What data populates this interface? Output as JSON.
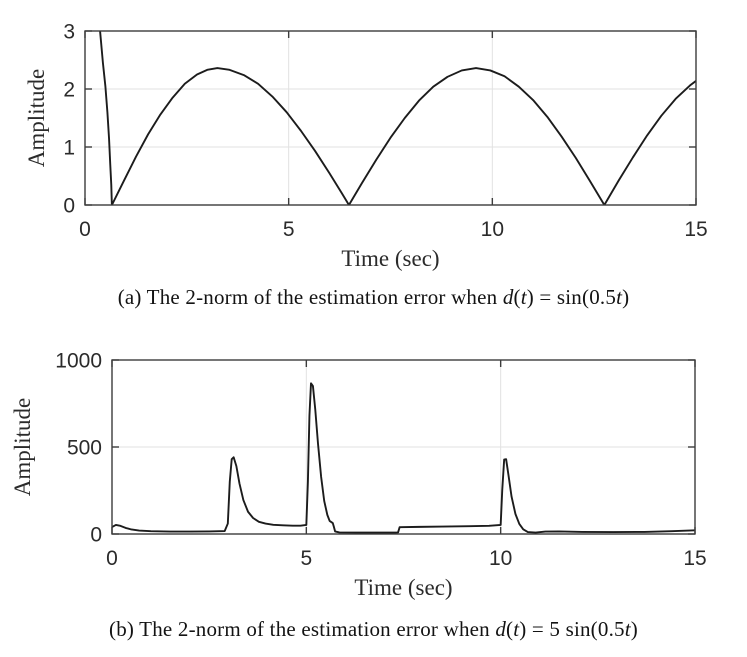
{
  "figure": {
    "background": "#ffffff",
    "curve_color": "#1c1c1c",
    "axis_color": "#3c3c3c",
    "grid_color": "#e2e2e2",
    "tick_label_color": "#2b2b2b",
    "label_color": "#2b2b2b"
  },
  "chart_data": [
    {
      "type": "line",
      "id": "a",
      "xlabel": "Time (sec)",
      "ylabel": "Amplitude",
      "xlim": [
        0,
        15
      ],
      "ylim": [
        0,
        3
      ],
      "x_ticks": [
        "0",
        "5",
        "10",
        "15"
      ],
      "x_tick_values": [
        0,
        5,
        10,
        15
      ],
      "y_ticks": [
        "0",
        "1",
        "2",
        "3"
      ],
      "y_tick_values": [
        0,
        1,
        2,
        3
      ],
      "grid": true,
      "legend": "none",
      "series": [
        {
          "name": "2-norm of estimation error, d(t)=sin(0.5t)",
          "points": [
            [
              0.33,
              3.45
            ],
            [
              0.37,
              3.0
            ],
            [
              0.44,
              2.45
            ],
            [
              0.5,
              2.05
            ],
            [
              0.55,
              1.6
            ],
            [
              0.59,
              1.15
            ],
            [
              0.62,
              0.7
            ],
            [
              0.645,
              0.35
            ],
            [
              0.66,
              0.0
            ],
            [
              0.95,
              0.41
            ],
            [
              1.25,
              0.83
            ],
            [
              1.55,
              1.22
            ],
            [
              1.85,
              1.56
            ],
            [
              2.15,
              1.85
            ],
            [
              2.45,
              2.09
            ],
            [
              2.75,
              2.25
            ],
            [
              3.0,
              2.33
            ],
            [
              3.25,
              2.36
            ],
            [
              3.55,
              2.33
            ],
            [
              3.9,
              2.24
            ],
            [
              4.25,
              2.09
            ],
            [
              4.6,
              1.87
            ],
            [
              4.95,
              1.6
            ],
            [
              5.3,
              1.28
            ],
            [
              5.65,
              0.93
            ],
            [
              6.0,
              0.55
            ],
            [
              6.3,
              0.21
            ],
            [
              6.48,
              0.0
            ],
            [
              6.8,
              0.38
            ],
            [
              7.15,
              0.78
            ],
            [
              7.5,
              1.16
            ],
            [
              7.85,
              1.5
            ],
            [
              8.2,
              1.8
            ],
            [
              8.55,
              2.04
            ],
            [
              8.9,
              2.21
            ],
            [
              9.25,
              2.32
            ],
            [
              9.6,
              2.36
            ],
            [
              9.95,
              2.32
            ],
            [
              10.3,
              2.22
            ],
            [
              10.65,
              2.04
            ],
            [
              11.0,
              1.81
            ],
            [
              11.35,
              1.52
            ],
            [
              11.7,
              1.18
            ],
            [
              12.05,
              0.81
            ],
            [
              12.4,
              0.41
            ],
            [
              12.75,
              0.0
            ],
            [
              13.1,
              0.42
            ],
            [
              13.45,
              0.82
            ],
            [
              13.8,
              1.2
            ],
            [
              14.15,
              1.54
            ],
            [
              14.5,
              1.83
            ],
            [
              14.85,
              2.06
            ],
            [
              15.0,
              2.14
            ]
          ]
        }
      ],
      "caption_segments": [
        {
          "text": "(a) The 2-norm of the estimation error when ",
          "italic": false
        },
        {
          "text": "d",
          "italic": true
        },
        {
          "text": "(",
          "italic": false
        },
        {
          "text": "t",
          "italic": true
        },
        {
          "text": ") = sin(0.5",
          "italic": false
        },
        {
          "text": "t",
          "italic": true
        },
        {
          "text": ")",
          "italic": false
        }
      ]
    },
    {
      "type": "line",
      "id": "b",
      "xlabel": "Time (sec)",
      "ylabel": "Amplitude",
      "xlim": [
        0,
        15
      ],
      "ylim": [
        0,
        1000
      ],
      "x_ticks": [
        "0",
        "5",
        "10",
        "15"
      ],
      "x_tick_values": [
        0,
        5,
        10,
        15
      ],
      "y_ticks": [
        "0",
        "500",
        "1000"
      ],
      "y_tick_values": [
        0,
        500,
        1000
      ],
      "grid": true,
      "legend": "none",
      "series": [
        {
          "name": "2-norm of estimation error, d(t)=5sin(0.5t)",
          "points": [
            [
              0.0,
              40
            ],
            [
              0.1,
              52
            ],
            [
              0.2,
              48
            ],
            [
              0.35,
              35
            ],
            [
              0.5,
              26
            ],
            [
              0.7,
              20
            ],
            [
              1.0,
              16
            ],
            [
              1.5,
              14
            ],
            [
              2.0,
              14
            ],
            [
              2.5,
              15
            ],
            [
              2.9,
              17
            ],
            [
              2.98,
              60
            ],
            [
              3.03,
              300
            ],
            [
              3.08,
              430
            ],
            [
              3.13,
              441
            ],
            [
              3.2,
              390
            ],
            [
              3.28,
              290
            ],
            [
              3.38,
              195
            ],
            [
              3.5,
              128
            ],
            [
              3.63,
              92
            ],
            [
              3.78,
              70
            ],
            [
              3.95,
              60
            ],
            [
              4.15,
              53
            ],
            [
              4.4,
              50
            ],
            [
              4.65,
              48
            ],
            [
              4.85,
              48
            ],
            [
              5.0,
              52
            ],
            [
              5.04,
              300
            ],
            [
              5.08,
              680
            ],
            [
              5.12,
              866
            ],
            [
              5.17,
              850
            ],
            [
              5.23,
              715
            ],
            [
              5.3,
              520
            ],
            [
              5.38,
              330
            ],
            [
              5.46,
              190
            ],
            [
              5.54,
              110
            ],
            [
              5.6,
              75
            ],
            [
              5.68,
              63
            ],
            [
              5.71,
              40
            ],
            [
              5.74,
              15
            ],
            [
              5.85,
              9
            ],
            [
              6.3,
              8
            ],
            [
              6.9,
              8
            ],
            [
              7.3,
              8
            ],
            [
              7.36,
              9
            ],
            [
              7.4,
              39
            ],
            [
              7.9,
              41
            ],
            [
              8.5,
              43
            ],
            [
              9.2,
              45
            ],
            [
              9.7,
              47
            ],
            [
              10.0,
              52
            ],
            [
              10.04,
              250
            ],
            [
              10.09,
              428
            ],
            [
              10.14,
              430
            ],
            [
              10.2,
              340
            ],
            [
              10.28,
              215
            ],
            [
              10.38,
              115
            ],
            [
              10.48,
              58
            ],
            [
              10.58,
              27
            ],
            [
              10.7,
              11
            ],
            [
              10.9,
              8
            ],
            [
              11.15,
              14
            ],
            [
              11.5,
              15
            ],
            [
              12.1,
              12
            ],
            [
              12.9,
              11
            ],
            [
              13.7,
              12
            ],
            [
              14.4,
              16
            ],
            [
              15.0,
              21
            ]
          ]
        }
      ],
      "caption_segments": [
        {
          "text": "(b) The 2-norm of the estimation error when ",
          "italic": false
        },
        {
          "text": "d",
          "italic": true
        },
        {
          "text": "(",
          "italic": false
        },
        {
          "text": "t",
          "italic": true
        },
        {
          "text": ") = 5 sin(0.5",
          "italic": false
        },
        {
          "text": "t",
          "italic": true
        },
        {
          "text": ")",
          "italic": false
        }
      ]
    }
  ]
}
